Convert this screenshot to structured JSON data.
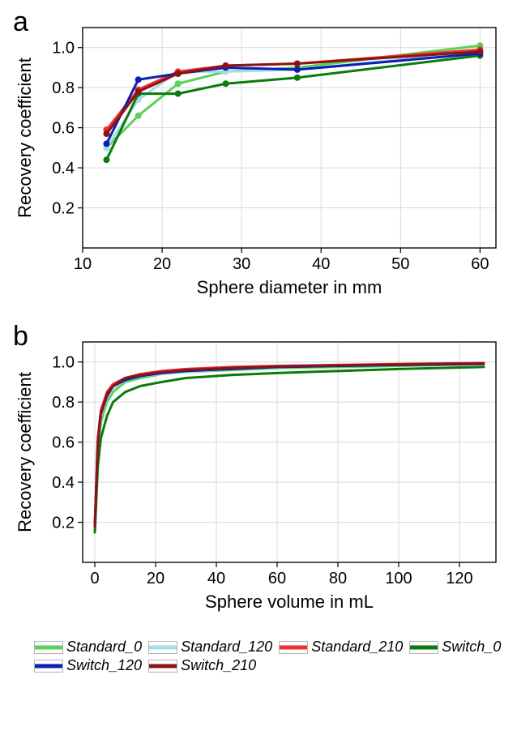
{
  "colors": {
    "background": "#ffffff",
    "axis": "#000000",
    "grid": "#d9d9d9",
    "tick_text": "#000000"
  },
  "series_colors": {
    "Standard_0": "#5bd05b",
    "Standard_120": "#a7dbe8",
    "Standard_210": "#f22e2e",
    "Switch_0": "#0b7a0b",
    "Switch_120": "#0b1fb3",
    "Switch_210": "#8a1414"
  },
  "panel_a": {
    "label": "a",
    "xlabel": "Sphere diameter in mm",
    "ylabel": "Recovery coefficient",
    "xlim": [
      10,
      62
    ],
    "ylim": [
      0,
      1.1
    ],
    "xticks": [
      10,
      20,
      30,
      40,
      50,
      60
    ],
    "yticks": [
      0.2,
      0.4,
      0.6,
      0.8,
      1.0
    ],
    "label_fontsize": 22,
    "tick_fontsize": 20,
    "line_width": 3,
    "marker_radius": 4,
    "x": [
      13,
      17,
      22,
      28,
      37,
      60
    ],
    "series": {
      "Standard_0": [
        0.5,
        0.66,
        0.82,
        0.88,
        0.9,
        1.01
      ],
      "Standard_120": [
        0.5,
        0.74,
        0.88,
        0.88,
        0.89,
        0.98
      ],
      "Standard_210": [
        0.59,
        0.79,
        0.88,
        0.91,
        0.92,
        0.99
      ],
      "Switch_0": [
        0.44,
        0.77,
        0.77,
        0.82,
        0.85,
        0.96
      ],
      "Switch_120": [
        0.52,
        0.84,
        0.87,
        0.9,
        0.89,
        0.97
      ],
      "Switch_210": [
        0.57,
        0.78,
        0.87,
        0.91,
        0.92,
        0.98
      ]
    }
  },
  "panel_b": {
    "label": "b",
    "xlabel": "Sphere volume in mL",
    "ylabel": "Recovery coefficient",
    "xlim": [
      -4,
      132
    ],
    "ylim": [
      0,
      1.1
    ],
    "xticks": [
      0,
      20,
      40,
      60,
      80,
      100,
      120
    ],
    "yticks": [
      0.2,
      0.4,
      0.6,
      0.8,
      1.0
    ],
    "label_fontsize": 22,
    "tick_fontsize": 20,
    "line_width": 3,
    "x": [
      0,
      1,
      2,
      4,
      6,
      10,
      15,
      22,
      30,
      45,
      60,
      80,
      100,
      128
    ],
    "series": {
      "Standard_0": [
        0.15,
        0.55,
        0.7,
        0.8,
        0.85,
        0.9,
        0.92,
        0.94,
        0.95,
        0.96,
        0.97,
        0.975,
        0.98,
        0.99
      ],
      "Standard_120": [
        0.15,
        0.58,
        0.73,
        0.82,
        0.87,
        0.91,
        0.93,
        0.94,
        0.95,
        0.965,
        0.975,
        0.98,
        0.985,
        0.99
      ],
      "Standard_210": [
        0.18,
        0.62,
        0.76,
        0.85,
        0.89,
        0.92,
        0.94,
        0.955,
        0.965,
        0.975,
        0.98,
        0.985,
        0.99,
        0.995
      ],
      "Switch_0": [
        0.15,
        0.48,
        0.62,
        0.73,
        0.8,
        0.85,
        0.88,
        0.9,
        0.92,
        0.935,
        0.945,
        0.955,
        0.965,
        0.975
      ],
      "Switch_120": [
        0.18,
        0.6,
        0.74,
        0.83,
        0.88,
        0.91,
        0.93,
        0.945,
        0.955,
        0.965,
        0.975,
        0.98,
        0.985,
        0.99
      ],
      "Switch_210": [
        0.18,
        0.6,
        0.74,
        0.84,
        0.88,
        0.92,
        0.935,
        0.95,
        0.96,
        0.97,
        0.978,
        0.983,
        0.988,
        0.993
      ]
    }
  },
  "legend_order": [
    "Standard_0",
    "Standard_120",
    "Standard_210",
    "Switch_0",
    "Switch_120",
    "Switch_210"
  ]
}
